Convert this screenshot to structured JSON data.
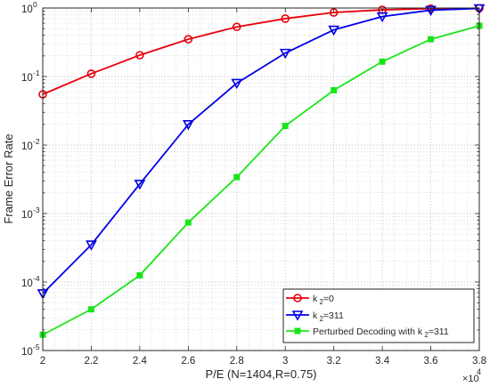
{
  "chart_data": {
    "type": "line",
    "xlabel": "P/E (N=1404,R=0.75)",
    "ylabel": "Frame Error Rate",
    "x_multiplier": "×10",
    "x_multiplier_exp": "4",
    "xlim": [
      2,
      3.8
    ],
    "ylim": [
      1e-05,
      1
    ],
    "yscale": "log",
    "grid": true,
    "legend_position": "bottom-right",
    "x_ticks": [
      "2",
      "2.2",
      "2.4",
      "2.6",
      "2.8",
      "3",
      "3.2",
      "3.4",
      "3.6",
      "3.8"
    ],
    "y_ticks": [
      {
        "base": "10",
        "exp": "0"
      },
      {
        "base": "10",
        "exp": "-1"
      },
      {
        "base": "10",
        "exp": "-2"
      },
      {
        "base": "10",
        "exp": "-3"
      },
      {
        "base": "10",
        "exp": "-4"
      },
      {
        "base": "10",
        "exp": "-5"
      }
    ],
    "x": [
      2.0,
      2.2,
      2.4,
      2.6,
      2.8,
      3.0,
      3.2,
      3.4,
      3.6,
      3.8
    ],
    "series": [
      {
        "name": "k 2=0",
        "legend": {
          "prefix": "k",
          "sub": "2",
          "suffix": "=0"
        },
        "color": "#e8000b",
        "marker": "circle",
        "values": [
          0.055,
          0.11,
          0.205,
          0.35,
          0.53,
          0.7,
          0.86,
          0.94,
          0.98,
          0.99
        ]
      },
      {
        "name": "k 2=311",
        "legend": {
          "prefix": "k",
          "sub": "2",
          "suffix": "=311"
        },
        "color": "#0000e6",
        "marker": "triangle-down",
        "values": [
          6.8e-05,
          0.00035,
          0.0027,
          0.02,
          0.08,
          0.22,
          0.48,
          0.75,
          0.93,
          0.985
        ]
      },
      {
        "name": "Perturbed Decoding with k 2=311",
        "legend": {
          "prefix": "Perturbed Decoding with k",
          "sub": "2",
          "suffix": "=311"
        },
        "color": "#19e619",
        "marker": "square",
        "values": [
          1.7e-05,
          4e-05,
          0.000125,
          0.00074,
          0.0034,
          0.019,
          0.063,
          0.165,
          0.35,
          0.55
        ]
      }
    ]
  }
}
